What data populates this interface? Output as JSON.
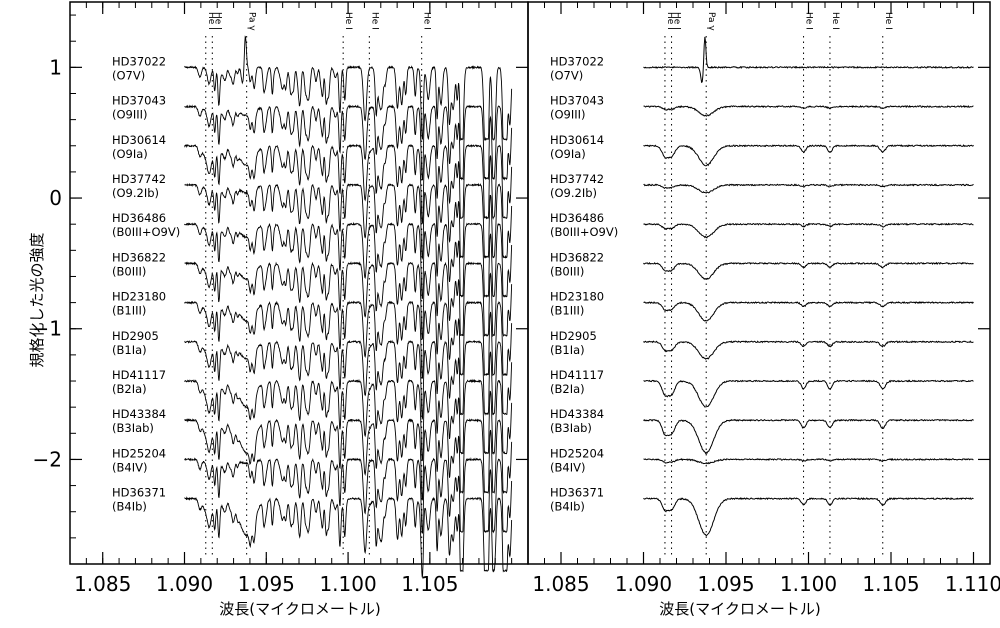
{
  "chart_data": [
    {
      "type": "line",
      "panel": "left",
      "title": "",
      "xlabel": "波長(マイクロメートル)",
      "ylabel": "規格化した光の強度",
      "xlim": [
        1.083,
        1.111
      ],
      "ylim": [
        -2.8,
        1.5
      ],
      "x_ticks": [
        "1.085",
        "1.090",
        "1.095",
        "1.100",
        "1.105"
      ],
      "y_ticks": [
        "1",
        "0",
        "−1",
        "−2"
      ],
      "y_tick_values": [
        1,
        0,
        -1,
        -2
      ],
      "data_x_range": [
        1.09,
        1.11
      ],
      "spectrum_character": "telluric-contaminated (dense absorption forest)",
      "line_markers": [
        {
          "label": "He I",
          "x": 1.0913
        },
        {
          "label": "He I",
          "x": 1.0917
        },
        {
          "label": "Pa γ",
          "x": 1.0938
        },
        {
          "label": "He I",
          "x": 1.0997
        },
        {
          "label": "He I",
          "x": 1.1013
        },
        {
          "label": "He I",
          "x": 1.1045
        }
      ],
      "series": [
        {
          "name": "HD37022",
          "sptype": "(O7V)",
          "offset": 1.0,
          "pa_gamma_depth": 0.0,
          "pa_gamma_emission": 0.25,
          "he_depth": 0.0
        },
        {
          "name": "HD37043",
          "sptype": "(O9III)",
          "offset": 0.7,
          "pa_gamma_depth": 0.07,
          "pa_gamma_emission": 0,
          "he_depth": 0.02
        },
        {
          "name": "HD30614",
          "sptype": "(O9Ia)",
          "offset": 0.4,
          "pa_gamma_depth": 0.15,
          "pa_gamma_emission": 0,
          "he_depth": 0.08
        },
        {
          "name": "HD37742",
          "sptype": "(O9.2Ib)",
          "offset": 0.1,
          "pa_gamma_depth": 0.06,
          "pa_gamma_emission": 0,
          "he_depth": 0.02
        },
        {
          "name": "HD36486",
          "sptype": "(B0III+O9V)",
          "offset": -0.2,
          "pa_gamma_depth": 0.1,
          "pa_gamma_emission": 0,
          "he_depth": 0.03
        },
        {
          "name": "HD36822",
          "sptype": "(B0III)",
          "offset": -0.5,
          "pa_gamma_depth": 0.12,
          "pa_gamma_emission": 0,
          "he_depth": 0.05
        },
        {
          "name": "HD23180",
          "sptype": "(B1III)",
          "offset": -0.8,
          "pa_gamma_depth": 0.14,
          "pa_gamma_emission": 0,
          "he_depth": 0.05
        },
        {
          "name": "HD2905",
          "sptype": "(B1Ia)",
          "offset": -1.1,
          "pa_gamma_depth": 0.13,
          "pa_gamma_emission": 0,
          "he_depth": 0.06
        },
        {
          "name": "HD41117",
          "sptype": "(B2Ia)",
          "offset": -1.4,
          "pa_gamma_depth": 0.2,
          "pa_gamma_emission": 0,
          "he_depth": 0.1
        },
        {
          "name": "HD43384",
          "sptype": "(B3Iab)",
          "offset": -1.7,
          "pa_gamma_depth": 0.25,
          "pa_gamma_emission": 0,
          "he_depth": 0.1
        },
        {
          "name": "HD25204",
          "sptype": "(B4IV)",
          "offset": -2.0,
          "pa_gamma_depth": 0.03,
          "pa_gamma_emission": 0,
          "he_depth": 0.02
        },
        {
          "name": "HD36371",
          "sptype": "(B4Ib)",
          "offset": -2.3,
          "pa_gamma_depth": 0.28,
          "pa_gamma_emission": 0,
          "he_depth": 0.08
        }
      ]
    },
    {
      "type": "line",
      "panel": "right",
      "title": "",
      "xlabel": "波長(マイクロメートル)",
      "ylabel": "",
      "xlim": [
        1.083,
        1.111
      ],
      "ylim": [
        -2.8,
        1.5
      ],
      "x_ticks": [
        "1.085",
        "1.090",
        "1.095",
        "1.100",
        "1.105",
        "1.110"
      ],
      "data_x_range": [
        1.09,
        1.11
      ],
      "spectrum_character": "telluric-corrected",
      "line_markers": [
        {
          "label": "He I",
          "x": 1.0913
        },
        {
          "label": "He I",
          "x": 1.0917
        },
        {
          "label": "Pa γ",
          "x": 1.0938
        },
        {
          "label": "He I",
          "x": 1.0997
        },
        {
          "label": "He I",
          "x": 1.1013
        },
        {
          "label": "He I",
          "x": 1.1045
        }
      ]
    }
  ]
}
